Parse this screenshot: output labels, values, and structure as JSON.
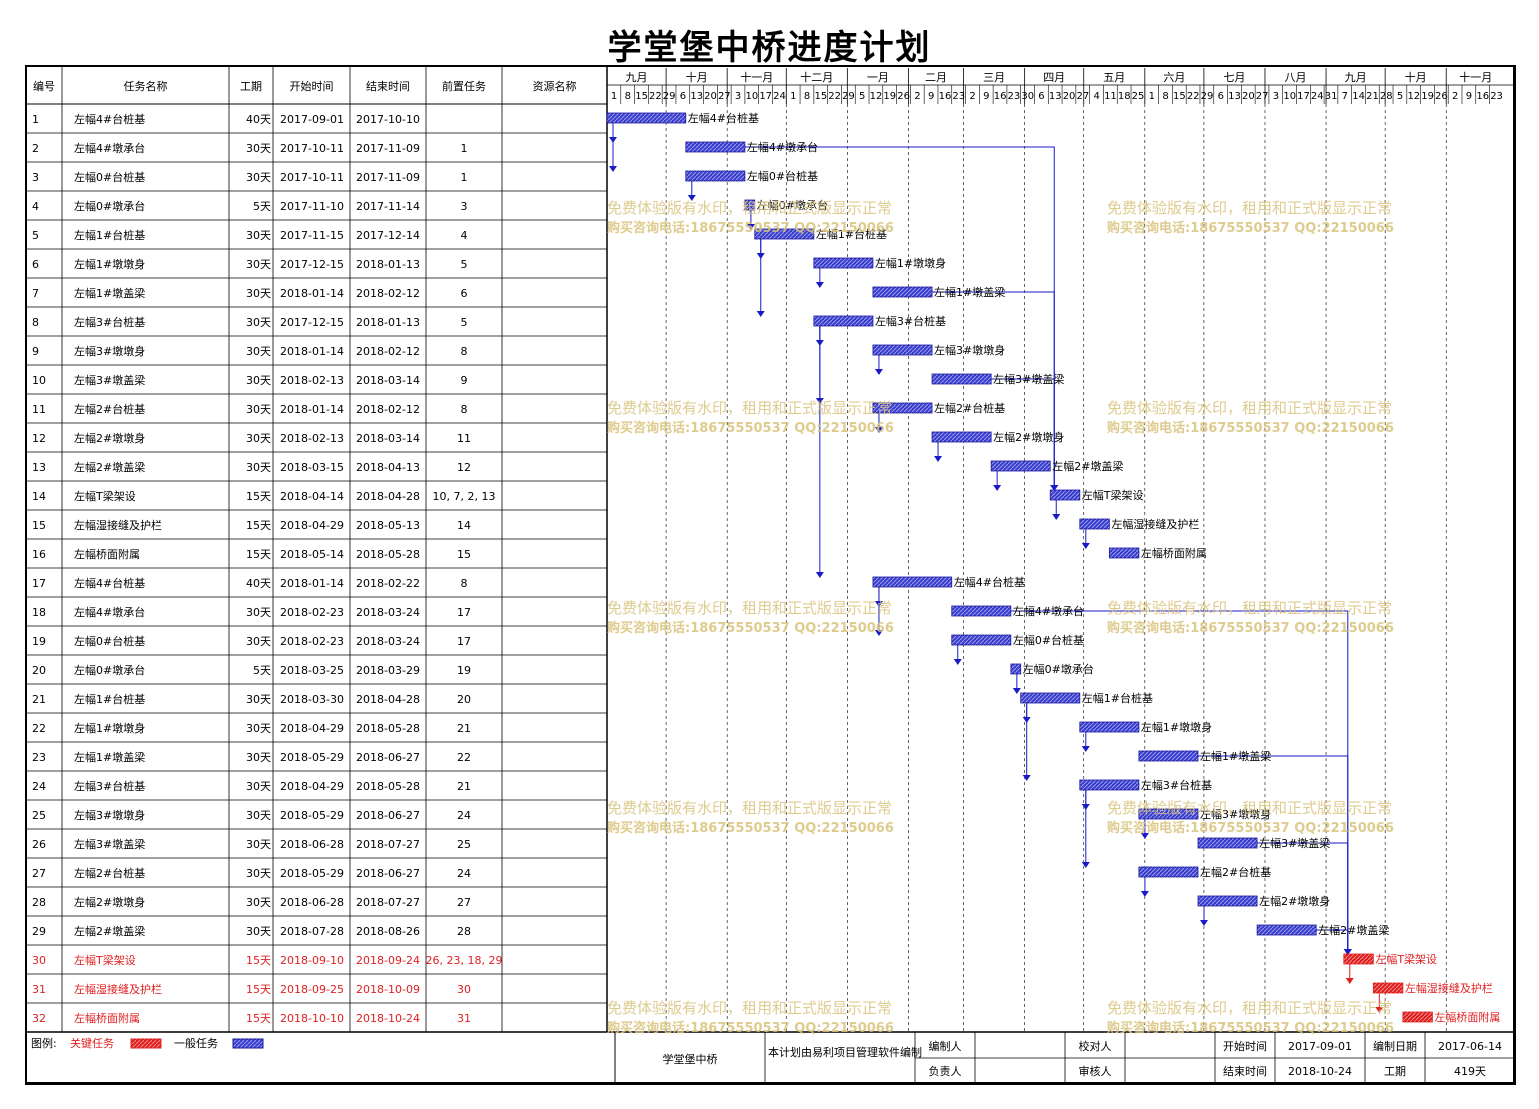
{
  "title": "学堂堡中桥进度计划",
  "table": {
    "headers": [
      "编号",
      "任务名称",
      "工期",
      "开始时间",
      "结束时间",
      "前置任务",
      "资源名称"
    ],
    "rows": [
      {
        "id": "1",
        "name": "左幅4#台桩基",
        "dur": "40天",
        "start": "2017-09-01",
        "end": "2017-10-10",
        "pred": "",
        "critical": false
      },
      {
        "id": "2",
        "name": "左幅4#墩承台",
        "dur": "30天",
        "start": "2017-10-11",
        "end": "2017-11-09",
        "pred": "1",
        "critical": false
      },
      {
        "id": "3",
        "name": "左幅0#台桩基",
        "dur": "30天",
        "start": "2017-10-11",
        "end": "2017-11-09",
        "pred": "1",
        "critical": false
      },
      {
        "id": "4",
        "name": "左幅0#墩承台",
        "dur": "5天",
        "start": "2017-11-10",
        "end": "2017-11-14",
        "pred": "3",
        "critical": false
      },
      {
        "id": "5",
        "name": "左幅1#台桩基",
        "dur": "30天",
        "start": "2017-11-15",
        "end": "2017-12-14",
        "pred": "4",
        "critical": false
      },
      {
        "id": "6",
        "name": "左幅1#墩墩身",
        "dur": "30天",
        "start": "2017-12-15",
        "end": "2018-01-13",
        "pred": "5",
        "critical": false
      },
      {
        "id": "7",
        "name": "左幅1#墩盖梁",
        "dur": "30天",
        "start": "2018-01-14",
        "end": "2018-02-12",
        "pred": "6",
        "critical": false
      },
      {
        "id": "8",
        "name": "左幅3#台桩基",
        "dur": "30天",
        "start": "2017-12-15",
        "end": "2018-01-13",
        "pred": "5",
        "critical": false
      },
      {
        "id": "9",
        "name": "左幅3#墩墩身",
        "dur": "30天",
        "start": "2018-01-14",
        "end": "2018-02-12",
        "pred": "8",
        "critical": false
      },
      {
        "id": "10",
        "name": "左幅3#墩盖梁",
        "dur": "30天",
        "start": "2018-02-13",
        "end": "2018-03-14",
        "pred": "9",
        "critical": false
      },
      {
        "id": "11",
        "name": "左幅2#台桩基",
        "dur": "30天",
        "start": "2018-01-14",
        "end": "2018-02-12",
        "pred": "8",
        "critical": false
      },
      {
        "id": "12",
        "name": "左幅2#墩墩身",
        "dur": "30天",
        "start": "2018-02-13",
        "end": "2018-03-14",
        "pred": "11",
        "critical": false
      },
      {
        "id": "13",
        "name": "左幅2#墩盖梁",
        "dur": "30天",
        "start": "2018-03-15",
        "end": "2018-04-13",
        "pred": "12",
        "critical": false
      },
      {
        "id": "14",
        "name": "左幅T梁架设",
        "dur": "15天",
        "start": "2018-04-14",
        "end": "2018-04-28",
        "pred": "10, 7, 2, 13",
        "critical": false
      },
      {
        "id": "15",
        "name": "左幅湿接缝及护栏",
        "dur": "15天",
        "start": "2018-04-29",
        "end": "2018-05-13",
        "pred": "14",
        "critical": false
      },
      {
        "id": "16",
        "name": "左幅桥面附属",
        "dur": "15天",
        "start": "2018-05-14",
        "end": "2018-05-28",
        "pred": "15",
        "critical": false
      },
      {
        "id": "17",
        "name": "左幅4#台桩基",
        "dur": "40天",
        "start": "2018-01-14",
        "end": "2018-02-22",
        "pred": "8",
        "critical": false
      },
      {
        "id": "18",
        "name": "左幅4#墩承台",
        "dur": "30天",
        "start": "2018-02-23",
        "end": "2018-03-24",
        "pred": "17",
        "critical": false
      },
      {
        "id": "19",
        "name": "左幅0#台桩基",
        "dur": "30天",
        "start": "2018-02-23",
        "end": "2018-03-24",
        "pred": "17",
        "critical": false
      },
      {
        "id": "20",
        "name": "左幅0#墩承台",
        "dur": "5天",
        "start": "2018-03-25",
        "end": "2018-03-29",
        "pred": "19",
        "critical": false
      },
      {
        "id": "21",
        "name": "左幅1#台桩基",
        "dur": "30天",
        "start": "2018-03-30",
        "end": "2018-04-28",
        "pred": "20",
        "critical": false
      },
      {
        "id": "22",
        "name": "左幅1#墩墩身",
        "dur": "30天",
        "start": "2018-04-29",
        "end": "2018-05-28",
        "pred": "21",
        "critical": false
      },
      {
        "id": "23",
        "name": "左幅1#墩盖梁",
        "dur": "30天",
        "start": "2018-05-29",
        "end": "2018-06-27",
        "pred": "22",
        "critical": false
      },
      {
        "id": "24",
        "name": "左幅3#台桩基",
        "dur": "30天",
        "start": "2018-04-29",
        "end": "2018-05-28",
        "pred": "21",
        "critical": false
      },
      {
        "id": "25",
        "name": "左幅3#墩墩身",
        "dur": "30天",
        "start": "2018-05-29",
        "end": "2018-06-27",
        "pred": "24",
        "critical": false
      },
      {
        "id": "26",
        "name": "左幅3#墩盖梁",
        "dur": "30天",
        "start": "2018-06-28",
        "end": "2018-07-27",
        "pred": "25",
        "critical": false
      },
      {
        "id": "27",
        "name": "左幅2#台桩基",
        "dur": "30天",
        "start": "2018-05-29",
        "end": "2018-06-27",
        "pred": "24",
        "critical": false
      },
      {
        "id": "28",
        "name": "左幅2#墩墩身",
        "dur": "30天",
        "start": "2018-06-28",
        "end": "2018-07-27",
        "pred": "27",
        "critical": false
      },
      {
        "id": "29",
        "name": "左幅2#墩盖梁",
        "dur": "30天",
        "start": "2018-07-28",
        "end": "2018-08-26",
        "pred": "28",
        "critical": false
      },
      {
        "id": "30",
        "name": "左幅T梁架设",
        "dur": "15天",
        "start": "2018-09-10",
        "end": "2018-09-24",
        "pred": "26, 23, 18, 29",
        "critical": true
      },
      {
        "id": "31",
        "name": "左幅湿接缝及护栏",
        "dur": "15天",
        "start": "2018-09-25",
        "end": "2018-10-09",
        "pred": "30",
        "critical": true
      },
      {
        "id": "32",
        "name": "左幅桥面附属",
        "dur": "15天",
        "start": "2018-10-10",
        "end": "2018-10-24",
        "pred": "31",
        "critical": true
      }
    ]
  },
  "timeline": {
    "months": [
      {
        "label": "九月",
        "days": [
          "1",
          "8",
          "15",
          "22",
          "29"
        ]
      },
      {
        "label": "十月",
        "days": [
          "6",
          "13",
          "20",
          "27"
        ]
      },
      {
        "label": "十一月",
        "days": [
          "3",
          "10",
          "17",
          "24"
        ]
      },
      {
        "label": "十二月",
        "days": [
          "1",
          "8",
          "15",
          "22",
          "29"
        ]
      },
      {
        "label": "一月",
        "days": [
          "5",
          "12",
          "19",
          "26"
        ]
      },
      {
        "label": "二月",
        "days": [
          "2",
          "9",
          "16",
          "23"
        ]
      },
      {
        "label": "三月",
        "days": [
          "2",
          "9",
          "16",
          "23",
          "30"
        ]
      },
      {
        "label": "四月",
        "days": [
          "6",
          "13",
          "20",
          "27"
        ]
      },
      {
        "label": "五月",
        "days": [
          "4",
          "11",
          "18",
          "25"
        ]
      },
      {
        "label": "六月",
        "days": [
          "1",
          "8",
          "15",
          "22",
          "29"
        ]
      },
      {
        "label": "七月",
        "days": [
          "6",
          "13",
          "20",
          "27"
        ]
      },
      {
        "label": "八月",
        "days": [
          "3",
          "10",
          "17",
          "24",
          "31"
        ]
      },
      {
        "label": "九月",
        "days": [
          "7",
          "14",
          "21",
          "28"
        ]
      },
      {
        "label": "十月",
        "days": [
          "5",
          "12",
          "19",
          "26"
        ]
      },
      {
        "label": "十一月",
        "days": [
          "2",
          "9",
          "16",
          "23"
        ]
      }
    ]
  },
  "watermark": {
    "line1": "免费体验版有水印，租用和正式版显示正常",
    "line2": "购买咨询电话:18675550537 QQ:22150066"
  },
  "legend": {
    "prefix": "图例:",
    "critical": "关键任务",
    "normal": "一般任务"
  },
  "footer": {
    "project": "学堂堡中桥",
    "note": "本计划由易利项目管理软件编制",
    "editor_label": "编制人",
    "editor": "",
    "checker_label": "校对人",
    "checker": "",
    "owner_label": "负责人",
    "owner": "",
    "reviewer_label": "审核人",
    "reviewer": "",
    "start_label": "开始时间",
    "start": "2017-09-01",
    "end_label": "结束时间",
    "end": "2018-10-24",
    "date_label": "编制日期",
    "date": "2017-06-14",
    "dur_label": "工期",
    "dur": "419天"
  },
  "colors": {
    "normal": "#3b3fd0",
    "critical": "#e02020",
    "link_normal": "#1a1ac8",
    "link_critical": "#e02020",
    "watermark": "#d8c27a"
  },
  "chart_data": {
    "type": "gantt",
    "title": "学堂堡中桥进度计划",
    "x_range": [
      "2017-09-01",
      "2018-11-30"
    ],
    "tasks_ref": "table.rows",
    "links": [
      [
        1,
        2
      ],
      [
        1,
        3
      ],
      [
        3,
        4
      ],
      [
        4,
        5
      ],
      [
        5,
        6
      ],
      [
        6,
        7
      ],
      [
        5,
        8
      ],
      [
        8,
        9
      ],
      [
        9,
        10
      ],
      [
        8,
        11
      ],
      [
        11,
        12
      ],
      [
        12,
        13
      ],
      [
        13,
        14
      ],
      [
        2,
        14
      ],
      [
        7,
        14
      ],
      [
        10,
        14
      ],
      [
        14,
        15
      ],
      [
        15,
        16
      ],
      [
        8,
        17
      ],
      [
        17,
        18
      ],
      [
        17,
        19
      ],
      [
        19,
        20
      ],
      [
        20,
        21
      ],
      [
        21,
        22
      ],
      [
        22,
        23
      ],
      [
        21,
        24
      ],
      [
        24,
        25
      ],
      [
        25,
        26
      ],
      [
        24,
        27
      ],
      [
        27,
        28
      ],
      [
        28,
        29
      ],
      [
        29,
        30
      ],
      [
        18,
        30
      ],
      [
        23,
        30
      ],
      [
        26,
        30
      ],
      [
        30,
        31
      ],
      [
        31,
        32
      ]
    ]
  }
}
